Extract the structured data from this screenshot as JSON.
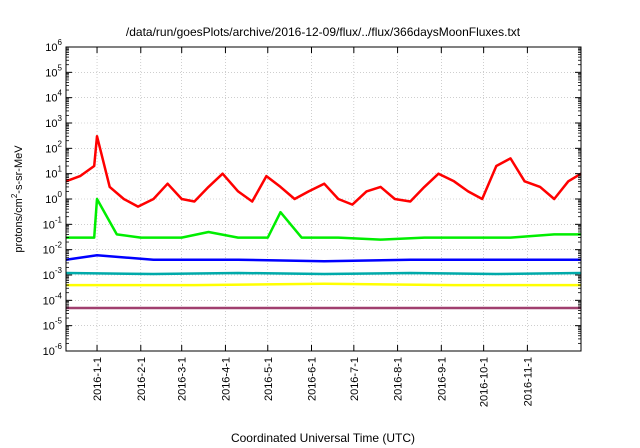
{
  "chart_data": {
    "type": "line",
    "title": "/data/run/goesPlots/archive/2016-12-09/flux/../flux/366daysMoonFluxes.txt",
    "xlabel": "Coordinated Universal Time (UTC)",
    "ylabel": "protons/cm²-s-sr-MeV",
    "y_scale": "log",
    "ylim": [
      1e-06,
      1000000.0
    ],
    "xlim": [
      "2015-12-10",
      "2016-12-09"
    ],
    "grid": true,
    "legend": "none",
    "y_ticks": [
      {
        "exp": "-6",
        "value": 1e-06
      },
      {
        "exp": "-5",
        "value": 1e-05
      },
      {
        "exp": "-4",
        "value": 0.0001
      },
      {
        "exp": "-3",
        "value": 0.001
      },
      {
        "exp": "-2",
        "value": 0.01
      },
      {
        "exp": "-1",
        "value": 0.1
      },
      {
        "exp": "0",
        "value": 1
      },
      {
        "exp": "1",
        "value": 10
      },
      {
        "exp": "2",
        "value": 100
      },
      {
        "exp": "3",
        "value": 1000
      },
      {
        "exp": "4",
        "value": 10000
      },
      {
        "exp": "5",
        "value": 100000
      },
      {
        "exp": "6",
        "value": 1000000
      }
    ],
    "y_tick_base": "10",
    "x_ticks": [
      "2016-1-1",
      "2016-2-1",
      "2016-3-1",
      "2016-4-1",
      "2016-5-1",
      "2016-6-1",
      "2016-7-1",
      "2016-8-1",
      "2016-9-1",
      "2016-10-1",
      "2016-11-1"
    ],
    "series": [
      {
        "color": "#ff0000",
        "x": [
          "2015-12-10",
          "2015-12-20",
          "2015-12-30",
          "2016-01-01",
          "2016-01-10",
          "2016-01-20",
          "2016-01-30",
          "2016-02-10",
          "2016-02-20",
          "2016-03-01",
          "2016-03-10",
          "2016-03-20",
          "2016-03-30",
          "2016-04-10",
          "2016-04-20",
          "2016-04-30",
          "2016-05-10",
          "2016-05-20",
          "2016-05-30",
          "2016-06-10",
          "2016-06-20",
          "2016-06-30",
          "2016-07-10",
          "2016-07-20",
          "2016-07-30",
          "2016-08-10",
          "2016-08-20",
          "2016-08-30",
          "2016-09-10",
          "2016-09-20",
          "2016-09-30",
          "2016-10-10",
          "2016-10-20",
          "2016-10-30",
          "2016-11-10",
          "2016-11-20",
          "2016-11-30",
          "2016-12-09"
        ],
        "y": [
          5,
          8,
          20,
          300,
          3,
          1,
          0.5,
          1,
          4,
          1,
          0.8,
          3,
          10,
          2,
          0.8,
          8,
          3,
          1,
          2,
          4,
          1,
          0.6,
          2,
          3,
          1,
          0.8,
          3,
          10,
          5,
          2,
          1,
          20,
          40,
          5,
          3,
          1,
          5,
          10
        ]
      },
      {
        "color": "#00ee00",
        "x": [
          "2015-12-10",
          "2015-12-30",
          "2016-01-01",
          "2016-01-15",
          "2016-02-01",
          "2016-03-01",
          "2016-03-20",
          "2016-04-10",
          "2016-05-01",
          "2016-05-10",
          "2016-05-25",
          "2016-06-20",
          "2016-07-20",
          "2016-08-20",
          "2016-09-20",
          "2016-10-20",
          "2016-11-20",
          "2016-12-09"
        ],
        "y": [
          0.03,
          0.03,
          1,
          0.04,
          0.03,
          0.03,
          0.05,
          0.03,
          0.03,
          0.3,
          0.03,
          0.03,
          0.025,
          0.03,
          0.03,
          0.03,
          0.04,
          0.04
        ]
      },
      {
        "color": "#00aaaa",
        "x": [
          "2015-12-10",
          "2016-02-10",
          "2016-04-10",
          "2016-06-10",
          "2016-08-10",
          "2016-10-10",
          "2016-12-09"
        ],
        "y": [
          0.0012,
          0.0011,
          0.0012,
          0.0011,
          0.0012,
          0.0011,
          0.0012
        ]
      },
      {
        "color": "#0000ff",
        "x": [
          "2015-12-10",
          "2016-01-01",
          "2016-02-10",
          "2016-04-10",
          "2016-06-10",
          "2016-08-10",
          "2016-10-10",
          "2016-12-09"
        ],
        "y": [
          0.004,
          0.006,
          0.004,
          0.004,
          0.0035,
          0.004,
          0.004,
          0.004
        ]
      },
      {
        "color": "#ffff00",
        "x": [
          "2015-12-10",
          "2016-03-10",
          "2016-06-10",
          "2016-09-10",
          "2016-12-09"
        ],
        "y": [
          0.0004,
          0.0004,
          0.00045,
          0.0004,
          0.0004
        ]
      },
      {
        "color": "#a03f6f",
        "x": [
          "2015-12-10",
          "2016-03-10",
          "2016-06-10",
          "2016-09-10",
          "2016-12-09"
        ],
        "y": [
          5e-05,
          5e-05,
          5e-05,
          5e-05,
          5e-05
        ]
      }
    ]
  }
}
